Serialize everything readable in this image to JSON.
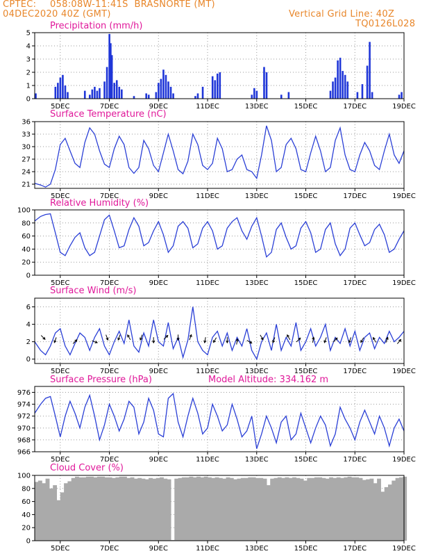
{
  "header": {
    "source": "CPTEC:",
    "location": "058:08W-11:41S  BRASNORTE (MT)",
    "run": "04DEC2020 40Z (GMT)",
    "grid_note": "Vertical Grid Line: 40Z",
    "model_code": "TQ0126L028"
  },
  "colors": {
    "header": "#e8862a",
    "title": "#e0189a",
    "line": "#2a3fd6",
    "bar": "#1f36d8",
    "cloud": "#aaaaaa"
  },
  "chart_data": [
    {
      "type": "bar",
      "title": "Precipitation (mm/h)",
      "ylim": [
        0,
        5
      ],
      "yticks": [
        0,
        1,
        2,
        3,
        4,
        5
      ],
      "xticks": [
        "5DEC",
        "7DEC",
        "9DEC",
        "11DEC",
        "13DEC",
        "15DEC",
        "17DEC",
        "19DEC"
      ],
      "grid": true,
      "x": [
        4.0,
        4.8,
        4.9,
        5.0,
        5.1,
        5.2,
        5.3,
        6.0,
        6.2,
        6.3,
        6.4,
        6.5,
        6.6,
        6.8,
        6.9,
        7.0,
        7.05,
        7.1,
        7.2,
        7.3,
        7.4,
        7.5,
        8.0,
        8.5,
        8.6,
        8.9,
        9.0,
        9.1,
        9.2,
        9.3,
        9.4,
        9.5,
        9.6,
        10.5,
        10.6,
        10.8,
        11.2,
        11.3,
        11.4,
        11.5,
        12.8,
        12.9,
        13.0,
        13.3,
        13.4,
        14.0,
        14.3,
        16.0,
        16.1,
        16.2,
        16.3,
        16.4,
        16.5,
        16.6,
        16.7,
        17.1,
        17.3,
        17.5,
        17.6,
        17.7,
        18.8,
        18.9
      ],
      "values": [
        0.4,
        0.9,
        1.2,
        1.6,
        1.8,
        1.0,
        0.5,
        0.6,
        0.3,
        0.7,
        0.9,
        0.6,
        0.8,
        1.3,
        2.4,
        4.9,
        4.2,
        3.3,
        1.2,
        1.4,
        0.9,
        0.7,
        0.2,
        0.4,
        0.3,
        0.5,
        1.2,
        1.5,
        2.2,
        1.8,
        1.3,
        0.9,
        0.4,
        0.2,
        0.4,
        0.9,
        1.7,
        1.4,
        1.9,
        2.0,
        0.3,
        0.8,
        0.6,
        2.4,
        2.0,
        0.3,
        0.5,
        0.6,
        1.3,
        1.6,
        2.9,
        3.1,
        2.1,
        1.8,
        1.3,
        0.5,
        1.1,
        2.5,
        4.3,
        0.5,
        0.3,
        0.5
      ]
    },
    {
      "type": "line",
      "title": "Surface Temperature (nC)",
      "ylim": [
        20,
        36
      ],
      "yticks": [
        21,
        24,
        27,
        30,
        33,
        36
      ],
      "xticks": [
        "5DEC",
        "7DEC",
        "9DEC",
        "11DEC",
        "13DEC",
        "15DEC",
        "17DEC",
        "19DEC"
      ],
      "grid": true,
      "x": [
        3.96,
        4.2,
        4.4,
        4.6,
        4.8,
        5.0,
        5.2,
        5.4,
        5.6,
        5.8,
        6.0,
        6.2,
        6.4,
        6.6,
        6.8,
        7.0,
        7.2,
        7.4,
        7.6,
        7.8,
        8.0,
        8.2,
        8.4,
        8.6,
        8.8,
        9.0,
        9.2,
        9.4,
        9.6,
        9.8,
        10.0,
        10.2,
        10.4,
        10.6,
        10.8,
        11.0,
        11.2,
        11.4,
        11.6,
        11.8,
        12.0,
        12.2,
        12.4,
        12.6,
        12.8,
        13.0,
        13.2,
        13.4,
        13.6,
        13.8,
        14.0,
        14.2,
        14.4,
        14.6,
        14.8,
        15.0,
        15.2,
        15.4,
        15.6,
        15.8,
        16.0,
        16.2,
        16.4,
        16.6,
        16.8,
        17.0,
        17.2,
        17.4,
        17.6,
        17.8,
        18.0,
        18.2,
        18.4,
        18.6,
        18.8,
        19.0
      ],
      "values": [
        21.2,
        20.8,
        20.3,
        21.0,
        24.5,
        30.5,
        32.0,
        29.0,
        26.0,
        25.0,
        31.0,
        34.5,
        33.0,
        29.0,
        25.8,
        25.0,
        29.5,
        32.5,
        30.5,
        25.0,
        23.6,
        25.0,
        31.5,
        29.5,
        25.5,
        24.0,
        28.5,
        33.0,
        29.0,
        24.5,
        23.5,
        26.5,
        33.0,
        30.5,
        25.5,
        24.5,
        26.0,
        32.0,
        29.5,
        24.0,
        24.5,
        27.0,
        28.0,
        24.5,
        24.0,
        22.4,
        28.0,
        35.0,
        31.5,
        24.0,
        25.0,
        30.5,
        32.0,
        29.5,
        24.5,
        24.0,
        28.5,
        32.5,
        29.0,
        24.0,
        25.0,
        31.5,
        34.5,
        28.0,
        24.5,
        24.0,
        28.0,
        31.0,
        29.0,
        25.5,
        24.5,
        29.0,
        33.0,
        28.0,
        26.0,
        29.0
      ]
    },
    {
      "type": "line",
      "title": "Relative Humidity (%)",
      "ylim": [
        0,
        100
      ],
      "yticks": [
        0,
        20,
        40,
        60,
        80,
        100
      ],
      "xticks": [
        "5DEC",
        "7DEC",
        "9DEC",
        "11DEC",
        "13DEC",
        "15DEC",
        "17DEC",
        "19DEC"
      ],
      "grid": true,
      "x": [
        3.96,
        4.2,
        4.4,
        4.6,
        4.8,
        5.0,
        5.2,
        5.4,
        5.6,
        5.8,
        6.0,
        6.2,
        6.4,
        6.6,
        6.8,
        7.0,
        7.2,
        7.4,
        7.6,
        7.8,
        8.0,
        8.2,
        8.4,
        8.6,
        8.8,
        9.0,
        9.2,
        9.4,
        9.6,
        9.8,
        10.0,
        10.2,
        10.4,
        10.6,
        10.8,
        11.0,
        11.2,
        11.4,
        11.6,
        11.8,
        12.0,
        12.2,
        12.4,
        12.6,
        12.8,
        13.0,
        13.2,
        13.4,
        13.6,
        13.8,
        14.0,
        14.2,
        14.4,
        14.6,
        14.8,
        15.0,
        15.2,
        15.4,
        15.6,
        15.8,
        16.0,
        16.2,
        16.4,
        16.6,
        16.8,
        17.0,
        17.2,
        17.4,
        17.6,
        17.8,
        18.0,
        18.2,
        18.4,
        18.6,
        18.8,
        19.0
      ],
      "values": [
        83,
        90,
        93,
        94,
        65,
        35,
        30,
        45,
        58,
        65,
        42,
        30,
        35,
        60,
        85,
        92,
        68,
        42,
        45,
        70,
        88,
        75,
        45,
        50,
        68,
        82,
        62,
        35,
        45,
        75,
        82,
        72,
        42,
        48,
        72,
        82,
        68,
        40,
        45,
        72,
        82,
        88,
        68,
        55,
        75,
        88,
        60,
        28,
        35,
        70,
        80,
        58,
        40,
        45,
        72,
        82,
        65,
        35,
        40,
        70,
        80,
        48,
        30,
        40,
        72,
        80,
        62,
        45,
        50,
        70,
        78,
        62,
        35,
        40,
        55,
        68
      ]
    },
    {
      "type": "line",
      "title": "Surface Wind (m/s)",
      "ylim": [
        -0.5,
        7
      ],
      "yticks": [
        0,
        2,
        4,
        6
      ],
      "xticks": [
        "5DEC",
        "7DEC",
        "9DEC",
        "11DEC",
        "13DEC",
        "15DEC",
        "17DEC",
        "19DEC"
      ],
      "grid": true,
      "x": [
        3.96,
        4.2,
        4.4,
        4.6,
        4.8,
        5.0,
        5.2,
        5.4,
        5.6,
        5.8,
        6.0,
        6.2,
        6.4,
        6.6,
        6.8,
        7.0,
        7.2,
        7.4,
        7.6,
        7.8,
        8.0,
        8.2,
        8.4,
        8.6,
        8.8,
        9.0,
        9.2,
        9.4,
        9.6,
        9.8,
        10.0,
        10.2,
        10.4,
        10.6,
        10.8,
        11.0,
        11.2,
        11.4,
        11.6,
        11.8,
        12.0,
        12.2,
        12.4,
        12.6,
        12.8,
        13.0,
        13.2,
        13.4,
        13.6,
        13.8,
        14.0,
        14.2,
        14.4,
        14.6,
        14.8,
        15.0,
        15.2,
        15.4,
        15.6,
        15.8,
        16.0,
        16.2,
        16.4,
        16.6,
        16.8,
        17.0,
        17.2,
        17.4,
        17.6,
        17.8,
        18.0,
        18.2,
        18.4,
        18.6,
        18.8,
        19.0
      ],
      "values": [
        2.0,
        1.0,
        0.5,
        1.5,
        3.0,
        3.5,
        1.5,
        0.5,
        1.8,
        3.0,
        2.5,
        1.0,
        2.5,
        3.5,
        1.5,
        0.5,
        2.0,
        3.2,
        1.8,
        4.5,
        1.5,
        0.8,
        3.0,
        1.5,
        4.5,
        2.0,
        1.5,
        4.2,
        1.2,
        2.5,
        0.2,
        2.2,
        6.0,
        2.0,
        1.0,
        0.5,
        2.5,
        3.2,
        1.5,
        3.0,
        1.0,
        2.5,
        1.5,
        3.5,
        1.0,
        0.0,
        2.0,
        3.0,
        1.0,
        4.0,
        1.0,
        2.5,
        1.5,
        4.2,
        1.0,
        2.0,
        3.5,
        1.5,
        2.5,
        4.0,
        1.0,
        2.5,
        1.8,
        3.5,
        1.5,
        3.2,
        1.0,
        2.5,
        3.0,
        1.2,
        2.5,
        1.8,
        3.2,
        2.0,
        2.5,
        3.2
      ],
      "vectors": {
        "x": [
          4.3,
          4.8,
          5.6,
          6.4,
          6.9,
          7.4,
          7.8,
          8.3,
          8.8,
          9.3,
          9.8,
          10.3,
          10.9,
          11.3,
          11.8,
          12.2,
          12.7,
          13.2,
          13.7,
          14.3,
          14.7,
          15.3,
          15.8,
          16.2,
          16.8,
          17.3,
          17.8,
          18.3,
          18.8
        ],
        "dir_deg": [
          135,
          200,
          45,
          110,
          160,
          200,
          330,
          200,
          180,
          45,
          180,
          20,
          190,
          210,
          180,
          10,
          120,
          150,
          200,
          330,
          45,
          10,
          200,
          45,
          200,
          210,
          330,
          20,
          40
        ],
        "speed": [
          2.5,
          2.2,
          2.0,
          2.0,
          2.5,
          2.5,
          2.5,
          2.5,
          2.2,
          2.5,
          2.5,
          2.5,
          2.2,
          2.2,
          2.2,
          2.0,
          2.0,
          2.5,
          2.2,
          2.5,
          2.2,
          2.2,
          2.2,
          2.2,
          2.2,
          2.2,
          2.2,
          2.2,
          2.0
        ]
      }
    },
    {
      "type": "line",
      "title": "Surface Pressure (hPa)",
      "annotation": "Model Altitude: 334.162 m",
      "ylim": [
        966,
        977
      ],
      "yticks": [
        966,
        968,
        970,
        972,
        974,
        976
      ],
      "xticks": [
        "5DEC",
        "7DEC",
        "9DEC",
        "11DEC",
        "13DEC",
        "15DEC",
        "17DEC",
        "19DEC"
      ],
      "grid": true,
      "x": [
        3.96,
        4.2,
        4.4,
        4.6,
        4.8,
        5.0,
        5.2,
        5.4,
        5.6,
        5.8,
        6.0,
        6.2,
        6.4,
        6.6,
        6.8,
        7.0,
        7.2,
        7.4,
        7.6,
        7.8,
        8.0,
        8.2,
        8.4,
        8.6,
        8.8,
        9.0,
        9.2,
        9.4,
        9.6,
        9.8,
        10.0,
        10.2,
        10.4,
        10.6,
        10.8,
        11.0,
        11.2,
        11.4,
        11.6,
        11.8,
        12.0,
        12.2,
        12.4,
        12.6,
        12.8,
        13.0,
        13.2,
        13.4,
        13.6,
        13.8,
        14.0,
        14.2,
        14.4,
        14.6,
        14.8,
        15.0,
        15.2,
        15.4,
        15.6,
        15.8,
        16.0,
        16.2,
        16.4,
        16.6,
        16.8,
        17.0,
        17.2,
        17.4,
        17.6,
        17.8,
        18.0,
        18.2,
        18.4,
        18.6,
        18.8,
        19.0
      ],
      "values": [
        972.5,
        974.0,
        975.0,
        975.3,
        972.0,
        968.5,
        972.0,
        974.5,
        972.5,
        970.0,
        973.5,
        975.5,
        972.0,
        968.0,
        970.5,
        974.0,
        972.0,
        969.5,
        971.5,
        974.5,
        973.5,
        969.0,
        971.0,
        975.0,
        973.0,
        969.0,
        968.5,
        975.0,
        975.8,
        971.0,
        968.5,
        972.0,
        975.0,
        972.5,
        969.0,
        970.0,
        974.0,
        972.0,
        969.5,
        970.5,
        974.0,
        971.5,
        968.5,
        969.5,
        972.0,
        966.5,
        969.0,
        972.0,
        970.0,
        967.5,
        971.0,
        972.0,
        968.0,
        969.0,
        972.5,
        970.0,
        967.5,
        970.0,
        972.0,
        970.5,
        967.0,
        969.0,
        973.5,
        971.5,
        970.0,
        968.0,
        971.0,
        973.0,
        971.0,
        969.0,
        972.0,
        970.0,
        967.0,
        970.0,
        971.5,
        969.5
      ]
    },
    {
      "type": "area",
      "title": "Cloud Cover (%)",
      "ylim": [
        0,
        100
      ],
      "yticks": [
        0,
        20,
        40,
        60,
        80,
        100
      ],
      "xticks": [
        "5DEC",
        "7DEC",
        "9DEC",
        "11DEC",
        "13DEC",
        "15DEC",
        "17DEC",
        "19DEC"
      ],
      "grid": true,
      "x": [
        3.96,
        4.1,
        4.25,
        4.4,
        4.55,
        4.7,
        4.85,
        5.0,
        5.15,
        5.3,
        5.45,
        5.6,
        5.75,
        5.9,
        6.05,
        6.2,
        6.35,
        6.5,
        6.65,
        6.8,
        6.95,
        7.1,
        7.25,
        7.4,
        7.55,
        7.7,
        7.85,
        8.0,
        8.15,
        8.3,
        8.45,
        8.6,
        8.75,
        8.9,
        9.05,
        9.2,
        9.35,
        9.5,
        9.65,
        9.8,
        9.95,
        10.1,
        10.25,
        10.4,
        10.55,
        10.7,
        10.85,
        11.0,
        11.15,
        11.3,
        11.45,
        11.6,
        11.75,
        11.9,
        12.05,
        12.2,
        12.35,
        12.5,
        12.65,
        12.8,
        12.95,
        13.1,
        13.25,
        13.4,
        13.55,
        13.7,
        13.85,
        14.0,
        14.15,
        14.3,
        14.45,
        14.6,
        14.75,
        14.9,
        15.05,
        15.2,
        15.35,
        15.5,
        15.65,
        15.8,
        15.95,
        16.1,
        16.25,
        16.4,
        16.55,
        16.7,
        16.85,
        17.0,
        17.15,
        17.3,
        17.45,
        17.6,
        17.75,
        17.9,
        18.05,
        18.2,
        18.35,
        18.5,
        18.65,
        18.8,
        18.95
      ],
      "values": [
        90,
        92,
        88,
        95,
        80,
        85,
        62,
        74,
        88,
        91,
        96,
        98,
        97,
        97,
        98,
        98,
        97,
        98,
        98,
        97,
        97,
        96,
        97,
        98,
        98,
        96,
        97,
        95,
        96,
        95,
        94,
        96,
        95,
        96,
        97,
        95,
        94,
        1,
        95,
        96,
        97,
        97,
        98,
        97,
        98,
        97,
        98,
        97,
        96,
        97,
        96,
        95,
        97,
        96,
        94,
        95,
        96,
        96,
        97,
        97,
        96,
        96,
        95,
        85,
        95,
        96,
        97,
        96,
        97,
        96,
        97,
        96,
        95,
        92,
        96,
        96,
        97,
        97,
        96,
        95,
        97,
        96,
        97,
        96,
        97,
        98,
        97,
        97,
        96,
        93,
        94,
        95,
        88,
        95,
        75,
        82,
        86,
        92,
        96,
        97,
        98
      ]
    }
  ]
}
